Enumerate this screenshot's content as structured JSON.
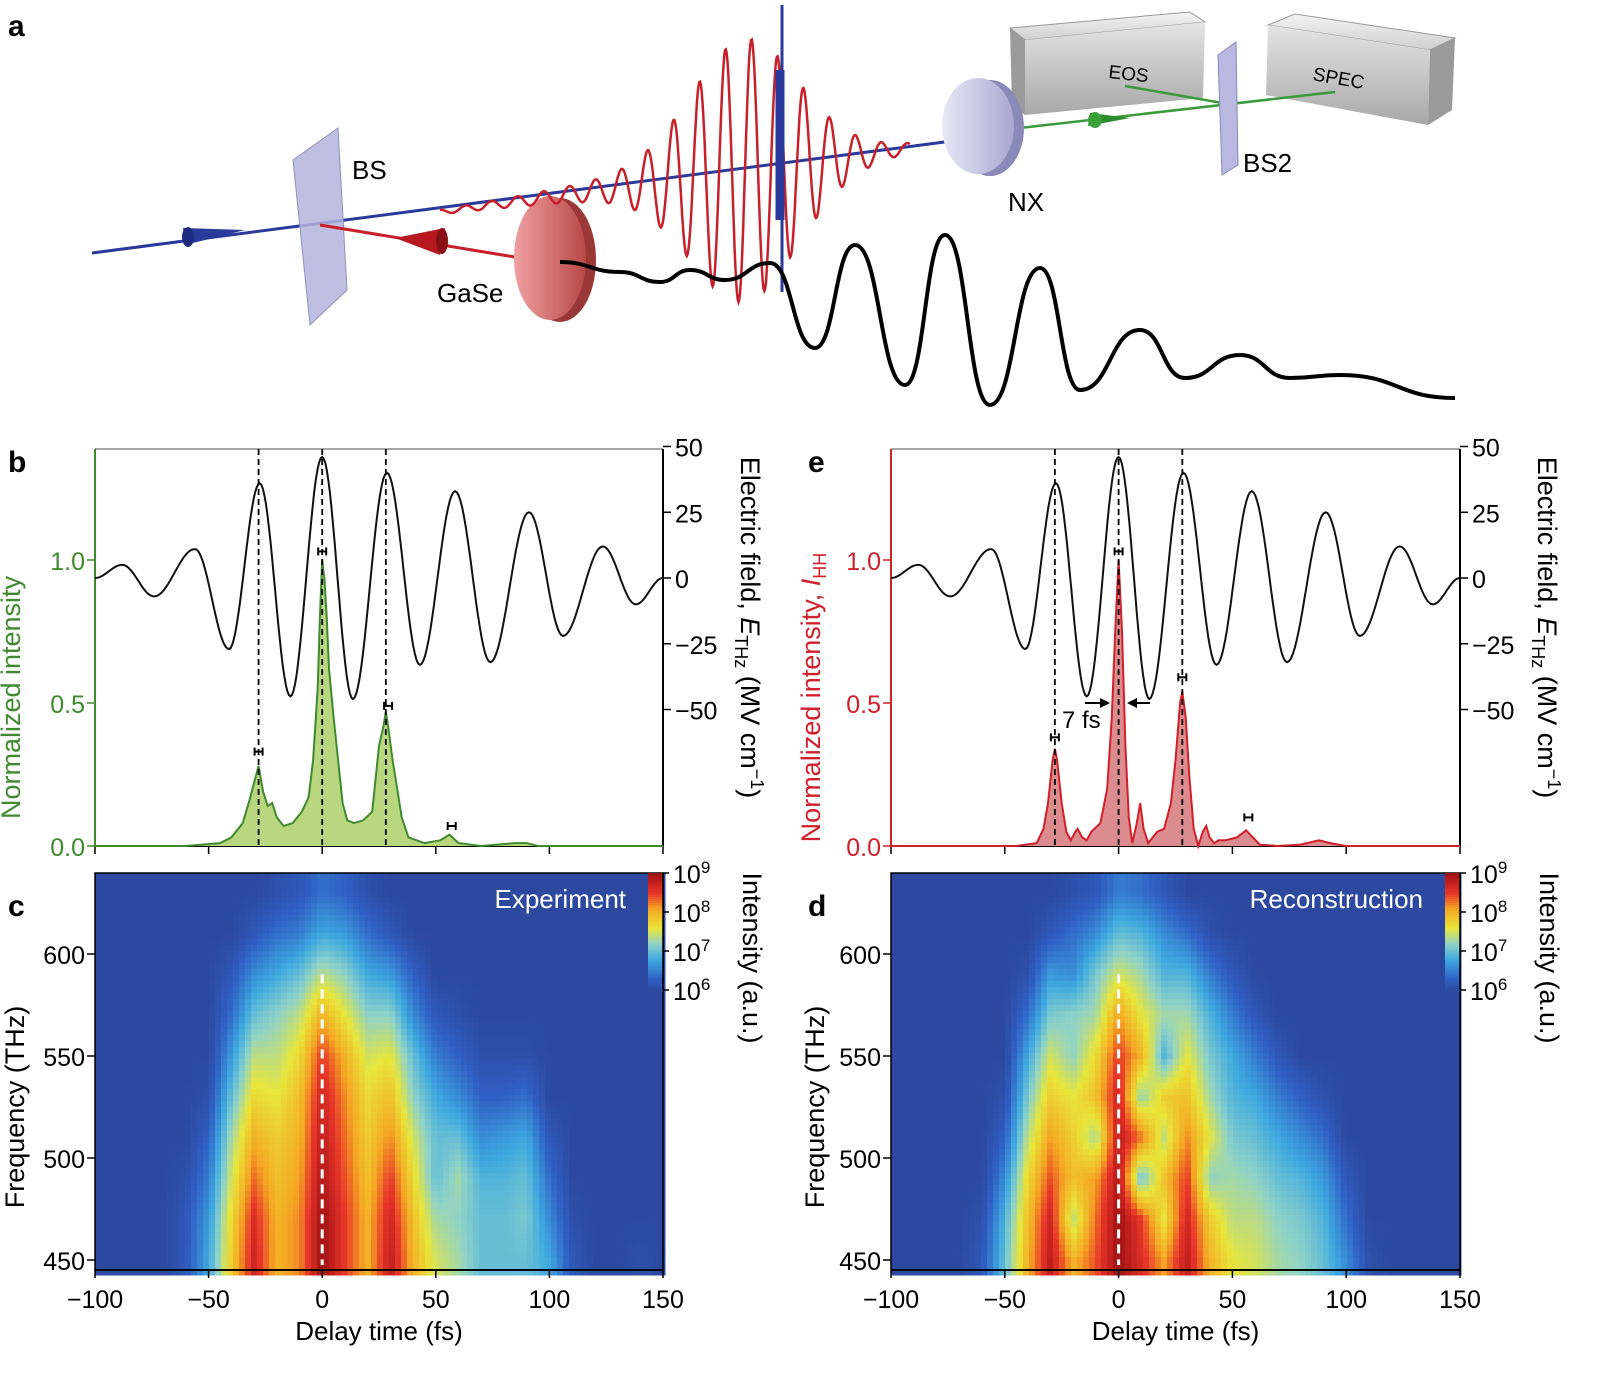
{
  "panel_letters": {
    "a": "a",
    "b": "b",
    "c": "c",
    "d": "d",
    "e": "e"
  },
  "diagram": {
    "labels": {
      "bs": "BS",
      "gase": "GaSe",
      "nx": "NX",
      "eos": "EOS",
      "spec": "SPEC",
      "bs2": "BS2"
    },
    "colors": {
      "nir_beam": "#2a3a9a",
      "mir_beam": "#c8202a",
      "thz_wave": "#000000",
      "probe_beam": "#3a9a3a"
    }
  },
  "chart_data": [
    {
      "panel": "b",
      "type": "line",
      "xlim": [
        -100,
        150
      ],
      "xticks": [
        -100,
        -50,
        0,
        50,
        100,
        150
      ],
      "ylabel_left": "Normalized intensity",
      "ylim_left": [
        0,
        1.4
      ],
      "yticks_left": [
        "0.0",
        "0.5",
        "1.0"
      ],
      "ylabel_right": {
        "prefix": "Electric field, ",
        "var": "E",
        "sub": "THz",
        "unit": " (MV cm",
        "sup": "−1",
        "close": ")"
      },
      "ylim_right": [
        -100,
        50
      ],
      "yticks_right": [
        "50",
        "25",
        "0",
        "−25",
        "−50"
      ],
      "color": "#3f8a2e",
      "fill": "#b9d77f",
      "dashed_lines_at": [
        -28,
        0,
        28
      ],
      "field_extrema": [
        [
          -100,
          0
        ],
        [
          -88,
          5
        ],
        [
          -74,
          -7
        ],
        [
          -56,
          11
        ],
        [
          -41,
          -27
        ],
        [
          -27.5,
          36
        ],
        [
          -14,
          -45
        ],
        [
          0,
          46
        ],
        [
          13.5,
          -46
        ],
        [
          28.5,
          40
        ],
        [
          43,
          -33
        ],
        [
          58.5,
          33
        ],
        [
          74,
          -32
        ],
        [
          91,
          25
        ],
        [
          106,
          -22
        ],
        [
          123.5,
          12
        ],
        [
          138,
          -10
        ],
        [
          150,
          0
        ]
      ],
      "intensity": [
        [
          -100,
          0
        ],
        [
          -60,
          0
        ],
        [
          -45,
          0.01
        ],
        [
          -40,
          0.03
        ],
        [
          -35,
          0.08
        ],
        [
          -32,
          0.16
        ],
        [
          -30,
          0.22
        ],
        [
          -28,
          0.28
        ],
        [
          -26,
          0.19
        ],
        [
          -24,
          0.14
        ],
        [
          -22,
          0.15
        ],
        [
          -20,
          0.1
        ],
        [
          -17,
          0.07
        ],
        [
          -13,
          0.08
        ],
        [
          -9,
          0.12
        ],
        [
          -6,
          0.17
        ],
        [
          -4,
          0.3
        ],
        [
          -2,
          0.55
        ],
        [
          -1,
          0.8
        ],
        [
          0,
          1.0
        ],
        [
          1,
          0.93
        ],
        [
          2,
          0.8
        ],
        [
          3,
          0.62
        ],
        [
          5,
          0.45
        ],
        [
          7,
          0.3
        ],
        [
          9,
          0.15
        ],
        [
          11,
          0.09
        ],
        [
          14,
          0.08
        ],
        [
          18,
          0.09
        ],
        [
          22,
          0.12
        ],
        [
          25,
          0.35
        ],
        [
          27,
          0.42
        ],
        [
          28,
          0.47
        ],
        [
          29,
          0.42
        ],
        [
          31,
          0.3
        ],
        [
          33,
          0.2
        ],
        [
          35,
          0.1
        ],
        [
          38,
          0.03
        ],
        [
          45,
          0.01
        ],
        [
          52,
          0.02
        ],
        [
          56,
          0.04
        ],
        [
          60,
          0.01
        ],
        [
          70,
          0
        ],
        [
          85,
          0.01
        ],
        [
          90,
          0.01
        ],
        [
          95,
          0
        ],
        [
          150,
          0
        ]
      ],
      "error_bars": [
        [
          -28,
          0.33
        ],
        [
          0,
          1.03
        ],
        [
          29,
          0.49
        ],
        [
          57,
          0.07
        ]
      ]
    },
    {
      "panel": "c",
      "type": "heatmap",
      "label": "Experiment",
      "xlabel": "Delay time (fs)",
      "ylabel": "Frequency (THz)",
      "xlim": [
        -100,
        150
      ],
      "ylim": [
        445,
        640
      ],
      "xticks": [
        -100,
        -50,
        0,
        50,
        100,
        150
      ],
      "yticks": [
        450,
        500,
        550,
        600
      ],
      "colorbar": {
        "label": "Intensity (a.u.)",
        "scale": "log",
        "ticks": [
          "10^6",
          "10^7",
          "10^8",
          "10^9"
        ],
        "range_log10": [
          6,
          9
        ]
      },
      "time_grid": [
        -100,
        -90,
        -80,
        -70,
        -60,
        -50,
        -40,
        -30,
        -20,
        -10,
        0,
        10,
        20,
        30,
        40,
        50,
        60,
        70,
        80,
        90,
        100,
        110,
        120,
        130,
        140,
        150
      ],
      "freq_grid": [
        450,
        470,
        490,
        510,
        530,
        550,
        570,
        590,
        610,
        630
      ],
      "log10_intensity": [
        [
          6,
          6,
          6,
          6,
          6.2,
          6.8,
          7.8,
          8.7,
          8.0,
          8.2,
          9.0,
          8.5,
          8.0,
          8.8,
          8.0,
          7.5,
          7.3,
          7.0,
          7.0,
          7.0,
          6.8,
          6.2,
          6,
          6,
          6.1,
          6
        ],
        [
          6,
          6,
          6,
          6,
          6.2,
          6.7,
          7.7,
          8.6,
          8.0,
          8.2,
          9.0,
          8.5,
          8.0,
          8.7,
          7.9,
          7.3,
          7.2,
          7.0,
          7.0,
          7.1,
          6.6,
          6.1,
          6,
          6,
          6,
          6
        ],
        [
          6,
          6,
          6,
          6,
          6.1,
          6.5,
          7.5,
          8.3,
          7.9,
          8.1,
          8.9,
          8.4,
          7.9,
          8.5,
          7.7,
          7.0,
          7.3,
          6.9,
          6.9,
          7.0,
          6.4,
          6,
          6,
          6,
          6,
          6
        ],
        [
          6,
          6,
          6,
          6,
          6,
          6.3,
          7.3,
          8.0,
          7.8,
          8.0,
          8.8,
          8.3,
          7.8,
          8.2,
          7.5,
          7.0,
          7.0,
          6.6,
          6.7,
          6.8,
          6.2,
          6,
          6,
          6,
          6,
          6
        ],
        [
          6,
          6,
          6,
          6,
          6,
          6.1,
          7.0,
          7.7,
          7.6,
          7.9,
          8.7,
          8.2,
          7.7,
          7.9,
          7.2,
          6.8,
          6.6,
          6.3,
          6.3,
          6.4,
          6,
          6,
          6,
          6,
          6,
          6
        ],
        [
          6,
          6,
          6,
          6,
          6,
          6,
          6.7,
          7.4,
          7.4,
          7.7,
          8.5,
          8.0,
          7.5,
          7.6,
          7.0,
          6.5,
          6.3,
          6.1,
          6.1,
          6.1,
          6,
          6,
          6,
          6,
          6,
          6
        ],
        [
          6,
          6,
          6,
          6,
          6,
          6,
          6.4,
          7.0,
          7.2,
          7.4,
          8.0,
          7.6,
          7.2,
          7.2,
          6.6,
          6.2,
          6.1,
          6,
          6,
          6,
          6,
          6,
          6,
          6,
          6,
          6
        ],
        [
          6,
          6,
          6,
          6,
          6,
          6,
          6.2,
          6.6,
          6.8,
          7.0,
          7.4,
          7.2,
          6.8,
          6.7,
          6.3,
          6,
          6,
          6,
          6,
          6,
          6,
          6,
          6,
          6,
          6,
          6
        ],
        [
          6,
          6,
          6,
          6,
          6,
          6,
          6,
          6.2,
          6.4,
          6.5,
          6.8,
          6.7,
          6.4,
          6.2,
          6,
          6,
          6,
          6,
          6,
          6,
          6,
          6,
          6,
          6,
          6,
          6
        ],
        [
          6,
          6,
          6,
          6,
          6,
          6,
          6,
          6,
          6.1,
          6.2,
          6.4,
          6.3,
          6.1,
          6,
          6,
          6,
          6,
          6,
          6,
          6,
          6,
          6,
          6,
          6,
          6,
          6
        ]
      ],
      "dashed_line_at": 0
    },
    {
      "panel": "d",
      "type": "heatmap",
      "label": "Reconstruction",
      "xlabel": "Delay time (fs)",
      "ylabel": "Frequency (THz)",
      "xlim": [
        -100,
        150
      ],
      "ylim": [
        445,
        640
      ],
      "xticks": [
        -100,
        -50,
        0,
        50,
        100,
        150
      ],
      "yticks": [
        450,
        500,
        550,
        600
      ],
      "colorbar": {
        "label": "Intensity (a.u.)",
        "scale": "log",
        "ticks": [
          "10^6",
          "10^7",
          "10^8",
          "10^9"
        ],
        "range_log10": [
          6,
          9
        ]
      },
      "time_grid": [
        -100,
        -90,
        -80,
        -70,
        -60,
        -50,
        -40,
        -30,
        -20,
        -10,
        0,
        10,
        20,
        30,
        40,
        50,
        60,
        70,
        80,
        90,
        100,
        110,
        120,
        130,
        140,
        150
      ],
      "freq_grid": [
        450,
        470,
        490,
        510,
        530,
        550,
        570,
        590,
        610,
        630
      ],
      "log10_intensity": [
        [
          6,
          6,
          6,
          6,
          6.2,
          7.0,
          8.0,
          8.8,
          8.0,
          8.4,
          9.0,
          8.6,
          8.1,
          8.8,
          8.0,
          7.6,
          7.5,
          7.3,
          7.2,
          7.0,
          6.6,
          6.1,
          6,
          6,
          6,
          6
        ],
        [
          6,
          6,
          6,
          6,
          6.1,
          6.9,
          7.9,
          8.7,
          7.4,
          8.3,
          9.0,
          8.5,
          7.6,
          8.7,
          7.8,
          7.4,
          7.4,
          7.2,
          7.1,
          6.9,
          6.4,
          6,
          6,
          6,
          6,
          6
        ],
        [
          6,
          6,
          6,
          6,
          6,
          6.6,
          7.7,
          8.4,
          7.9,
          8.1,
          8.9,
          7.0,
          7.9,
          8.5,
          7.2,
          7.3,
          7.2,
          7.0,
          6.9,
          6.7,
          6.2,
          6,
          6,
          6,
          6,
          6
        ],
        [
          6,
          6,
          6,
          6,
          6,
          6.3,
          7.4,
          8.1,
          7.8,
          7.3,
          8.8,
          8.3,
          7.4,
          8.2,
          7.6,
          7.1,
          7.0,
          6.8,
          6.6,
          6.4,
          6,
          6,
          6,
          6,
          6,
          6
        ],
        [
          6,
          6,
          6,
          6,
          6,
          6.1,
          7.1,
          7.8,
          7.6,
          7.9,
          8.7,
          7.2,
          7.8,
          7.9,
          7.3,
          6.9,
          6.8,
          6.5,
          6.3,
          6.1,
          6,
          6,
          6,
          6,
          6,
          6
        ],
        [
          6,
          6,
          6,
          6,
          6,
          6,
          6.8,
          7.5,
          7.2,
          7.7,
          8.5,
          8.0,
          6.9,
          7.6,
          7.1,
          6.8,
          6.5,
          6.2,
          6,
          6,
          6,
          6,
          6,
          6,
          6,
          6
        ],
        [
          6,
          6,
          6,
          6,
          6,
          6,
          6.4,
          7.1,
          7.2,
          7.3,
          8.1,
          7.6,
          7.3,
          7.3,
          6.9,
          6.5,
          6.2,
          6,
          6,
          6,
          6,
          6,
          6,
          6,
          6,
          6
        ],
        [
          6,
          6,
          6,
          6,
          6,
          6,
          6.1,
          6.7,
          6.6,
          7.1,
          7.5,
          7.3,
          6.9,
          6.9,
          6.5,
          6.2,
          6,
          6,
          6,
          6,
          6,
          6,
          6,
          6,
          6,
          6
        ],
        [
          6,
          6,
          6,
          6,
          6,
          6,
          6,
          6.2,
          6.4,
          6.6,
          7.0,
          6.9,
          6.6,
          6.4,
          6.1,
          6,
          6,
          6,
          6,
          6,
          6,
          6,
          6,
          6,
          6,
          6
        ],
        [
          6,
          6,
          6,
          6,
          6,
          6,
          6,
          6,
          6.1,
          6.2,
          6.5,
          6.4,
          6.2,
          6,
          6,
          6,
          6,
          6,
          6,
          6,
          6,
          6,
          6,
          6,
          6,
          6
        ]
      ],
      "dashed_line_at": 0
    },
    {
      "panel": "e",
      "type": "line",
      "xlim": [
        -100,
        150
      ],
      "xticks": [
        -100,
        -50,
        0,
        50,
        100,
        150
      ],
      "ylabel_left": {
        "prefix": "Normalized intensity, ",
        "var": "I",
        "sub": "HH"
      },
      "ylim_left": [
        0,
        1.4
      ],
      "yticks_left": [
        "0.0",
        "0.5",
        "1.0"
      ],
      "ylabel_right": {
        "prefix": "Electric field, ",
        "var": "E",
        "sub": "THz",
        "unit": " (MV cm",
        "sup": "−1",
        "close": ")"
      },
      "ylim_right": [
        -100,
        50
      ],
      "yticks_right": [
        "50",
        "25",
        "0",
        "−25",
        "−50"
      ],
      "color": "#d0202a",
      "fill": "#dc8c8e",
      "dashed_lines_at": [
        -28,
        0,
        28
      ],
      "annotation": "7 fs",
      "field_extrema": [
        [
          -100,
          0
        ],
        [
          -88,
          5
        ],
        [
          -74,
          -7
        ],
        [
          -56,
          11
        ],
        [
          -41,
          -27
        ],
        [
          -27.5,
          36
        ],
        [
          -14,
          -45
        ],
        [
          0,
          46
        ],
        [
          13.5,
          -46
        ],
        [
          28.5,
          40
        ],
        [
          43,
          -33
        ],
        [
          58.5,
          33
        ],
        [
          74,
          -32
        ],
        [
          91,
          25
        ],
        [
          106,
          -22
        ],
        [
          123.5,
          12
        ],
        [
          138,
          -10
        ],
        [
          150,
          0
        ]
      ],
      "intensity": [
        [
          -100,
          0
        ],
        [
          -45,
          0
        ],
        [
          -36,
          0.01
        ],
        [
          -33,
          0.06
        ],
        [
          -31,
          0.15
        ],
        [
          -29,
          0.3
        ],
        [
          -28,
          0.34
        ],
        [
          -27,
          0.3
        ],
        [
          -25,
          0.15
        ],
        [
          -23,
          0.05
        ],
        [
          -21,
          0.02
        ],
        [
          -19,
          0.05
        ],
        [
          -18,
          0.06
        ],
        [
          -16,
          0.03
        ],
        [
          -14,
          0.02
        ],
        [
          -12,
          0.05
        ],
        [
          -8,
          0.08
        ],
        [
          -5,
          0.2
        ],
        [
          -3,
          0.45
        ],
        [
          -1.5,
          0.75
        ],
        [
          0,
          1.0
        ],
        [
          1.5,
          0.75
        ],
        [
          3,
          0.35
        ],
        [
          4.5,
          0.1
        ],
        [
          6,
          0.01
        ],
        [
          8,
          0.08
        ],
        [
          9.5,
          0.15
        ],
        [
          11,
          0.06
        ],
        [
          13,
          0.01
        ],
        [
          15,
          0.03
        ],
        [
          17,
          0.05
        ],
        [
          20,
          0.06
        ],
        [
          23,
          0.15
        ],
        [
          25,
          0.3
        ],
        [
          27,
          0.5
        ],
        [
          28,
          0.54
        ],
        [
          29.5,
          0.45
        ],
        [
          31,
          0.25
        ],
        [
          33,
          0.06
        ],
        [
          35,
          0.0
        ],
        [
          37,
          0.05
        ],
        [
          38.5,
          0.07
        ],
        [
          40,
          0.03
        ],
        [
          42,
          0.01
        ],
        [
          44,
          0.02
        ],
        [
          47,
          0.02
        ],
        [
          52,
          0.03
        ],
        [
          56,
          0.055
        ],
        [
          59,
          0.03
        ],
        [
          62,
          0.005
        ],
        [
          70,
          0
        ],
        [
          80,
          0.005
        ],
        [
          88,
          0.02
        ],
        [
          93,
          0.01
        ],
        [
          100,
          0
        ],
        [
          150,
          0
        ]
      ],
      "error_bars": [
        [
          -28,
          0.38
        ],
        [
          0,
          1.03
        ],
        [
          28,
          0.59
        ],
        [
          57,
          0.1
        ]
      ]
    }
  ]
}
